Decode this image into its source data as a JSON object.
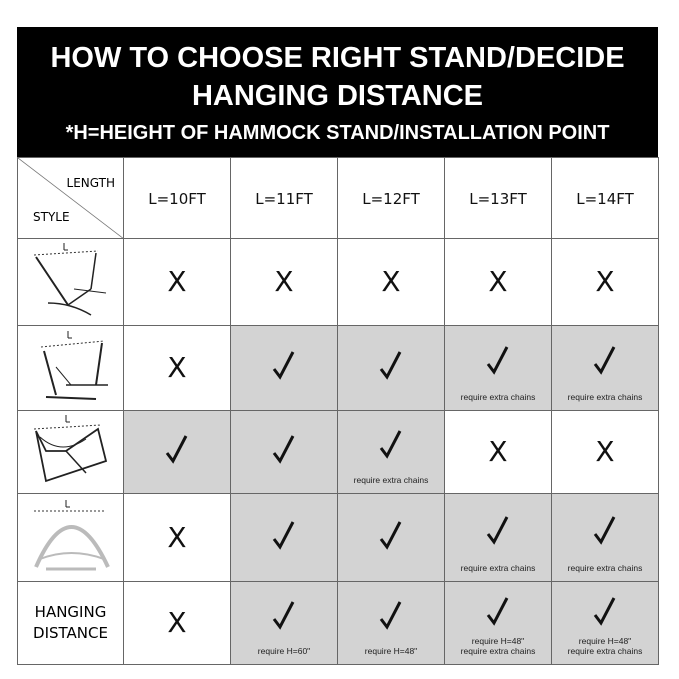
{
  "header": {
    "line1": "HOW TO CHOOSE RIGHT STAND/DECIDE",
    "line2": "HANGING DISTANCE",
    "line3": "*H=HEIGHT OF HAMMOCK STAND/INSTALLATION POINT"
  },
  "table": {
    "corner": {
      "length": "LENGTH",
      "style": "STYLE"
    },
    "columns": [
      "L=10FT",
      "L=11FT",
      "L=12FT",
      "L=13FT",
      "L=14FT"
    ],
    "rows": [
      {
        "style_icon": "steel-stand-angled-icon",
        "cells": [
          {
            "mark": "X",
            "shaded": false
          },
          {
            "mark": "X",
            "shaded": false
          },
          {
            "mark": "X",
            "shaded": false
          },
          {
            "mark": "X",
            "shaded": false
          },
          {
            "mark": "X",
            "shaded": false
          }
        ]
      },
      {
        "style_icon": "steel-stand-frame-icon",
        "cells": [
          {
            "mark": "X",
            "shaded": false
          },
          {
            "mark": "√",
            "shaded": true
          },
          {
            "mark": "√",
            "shaded": true
          },
          {
            "mark": "√",
            "shaded": true,
            "note": "require extra chains"
          },
          {
            "mark": "√",
            "shaded": true,
            "note": "require extra chains"
          }
        ]
      },
      {
        "style_icon": "portable-stand-icon",
        "cells": [
          {
            "mark": "√",
            "shaded": true
          },
          {
            "mark": "√",
            "shaded": true
          },
          {
            "mark": "√",
            "shaded": true,
            "note": "require extra chains"
          },
          {
            "mark": "X",
            "shaded": false
          },
          {
            "mark": "X",
            "shaded": false
          }
        ]
      },
      {
        "style_icon": "arc-stand-icon",
        "cells": [
          {
            "mark": "X",
            "shaded": false
          },
          {
            "mark": "√",
            "shaded": true
          },
          {
            "mark": "√",
            "shaded": true
          },
          {
            "mark": "√",
            "shaded": true,
            "note": "require extra chains"
          },
          {
            "mark": "√",
            "shaded": true,
            "note": "require extra chains"
          }
        ]
      },
      {
        "label": "HANGING DISTANCE",
        "label_lines": [
          "HANGING",
          "DISTANCE"
        ],
        "cells": [
          {
            "mark": "X",
            "shaded": false
          },
          {
            "mark": "√",
            "shaded": true,
            "note": "require H=60\""
          },
          {
            "mark": "√",
            "shaded": true,
            "note": "require H=48\""
          },
          {
            "mark": "√",
            "shaded": true,
            "note": "require H=48\"",
            "note2": "require extra chains"
          },
          {
            "mark": "√",
            "shaded": true,
            "note": "require H=48\"",
            "note2": "require extra chains"
          }
        ]
      }
    ]
  },
  "colors": {
    "header_bg": "#000000",
    "shaded_cell": "#d3d3d3",
    "border": "#666666"
  }
}
